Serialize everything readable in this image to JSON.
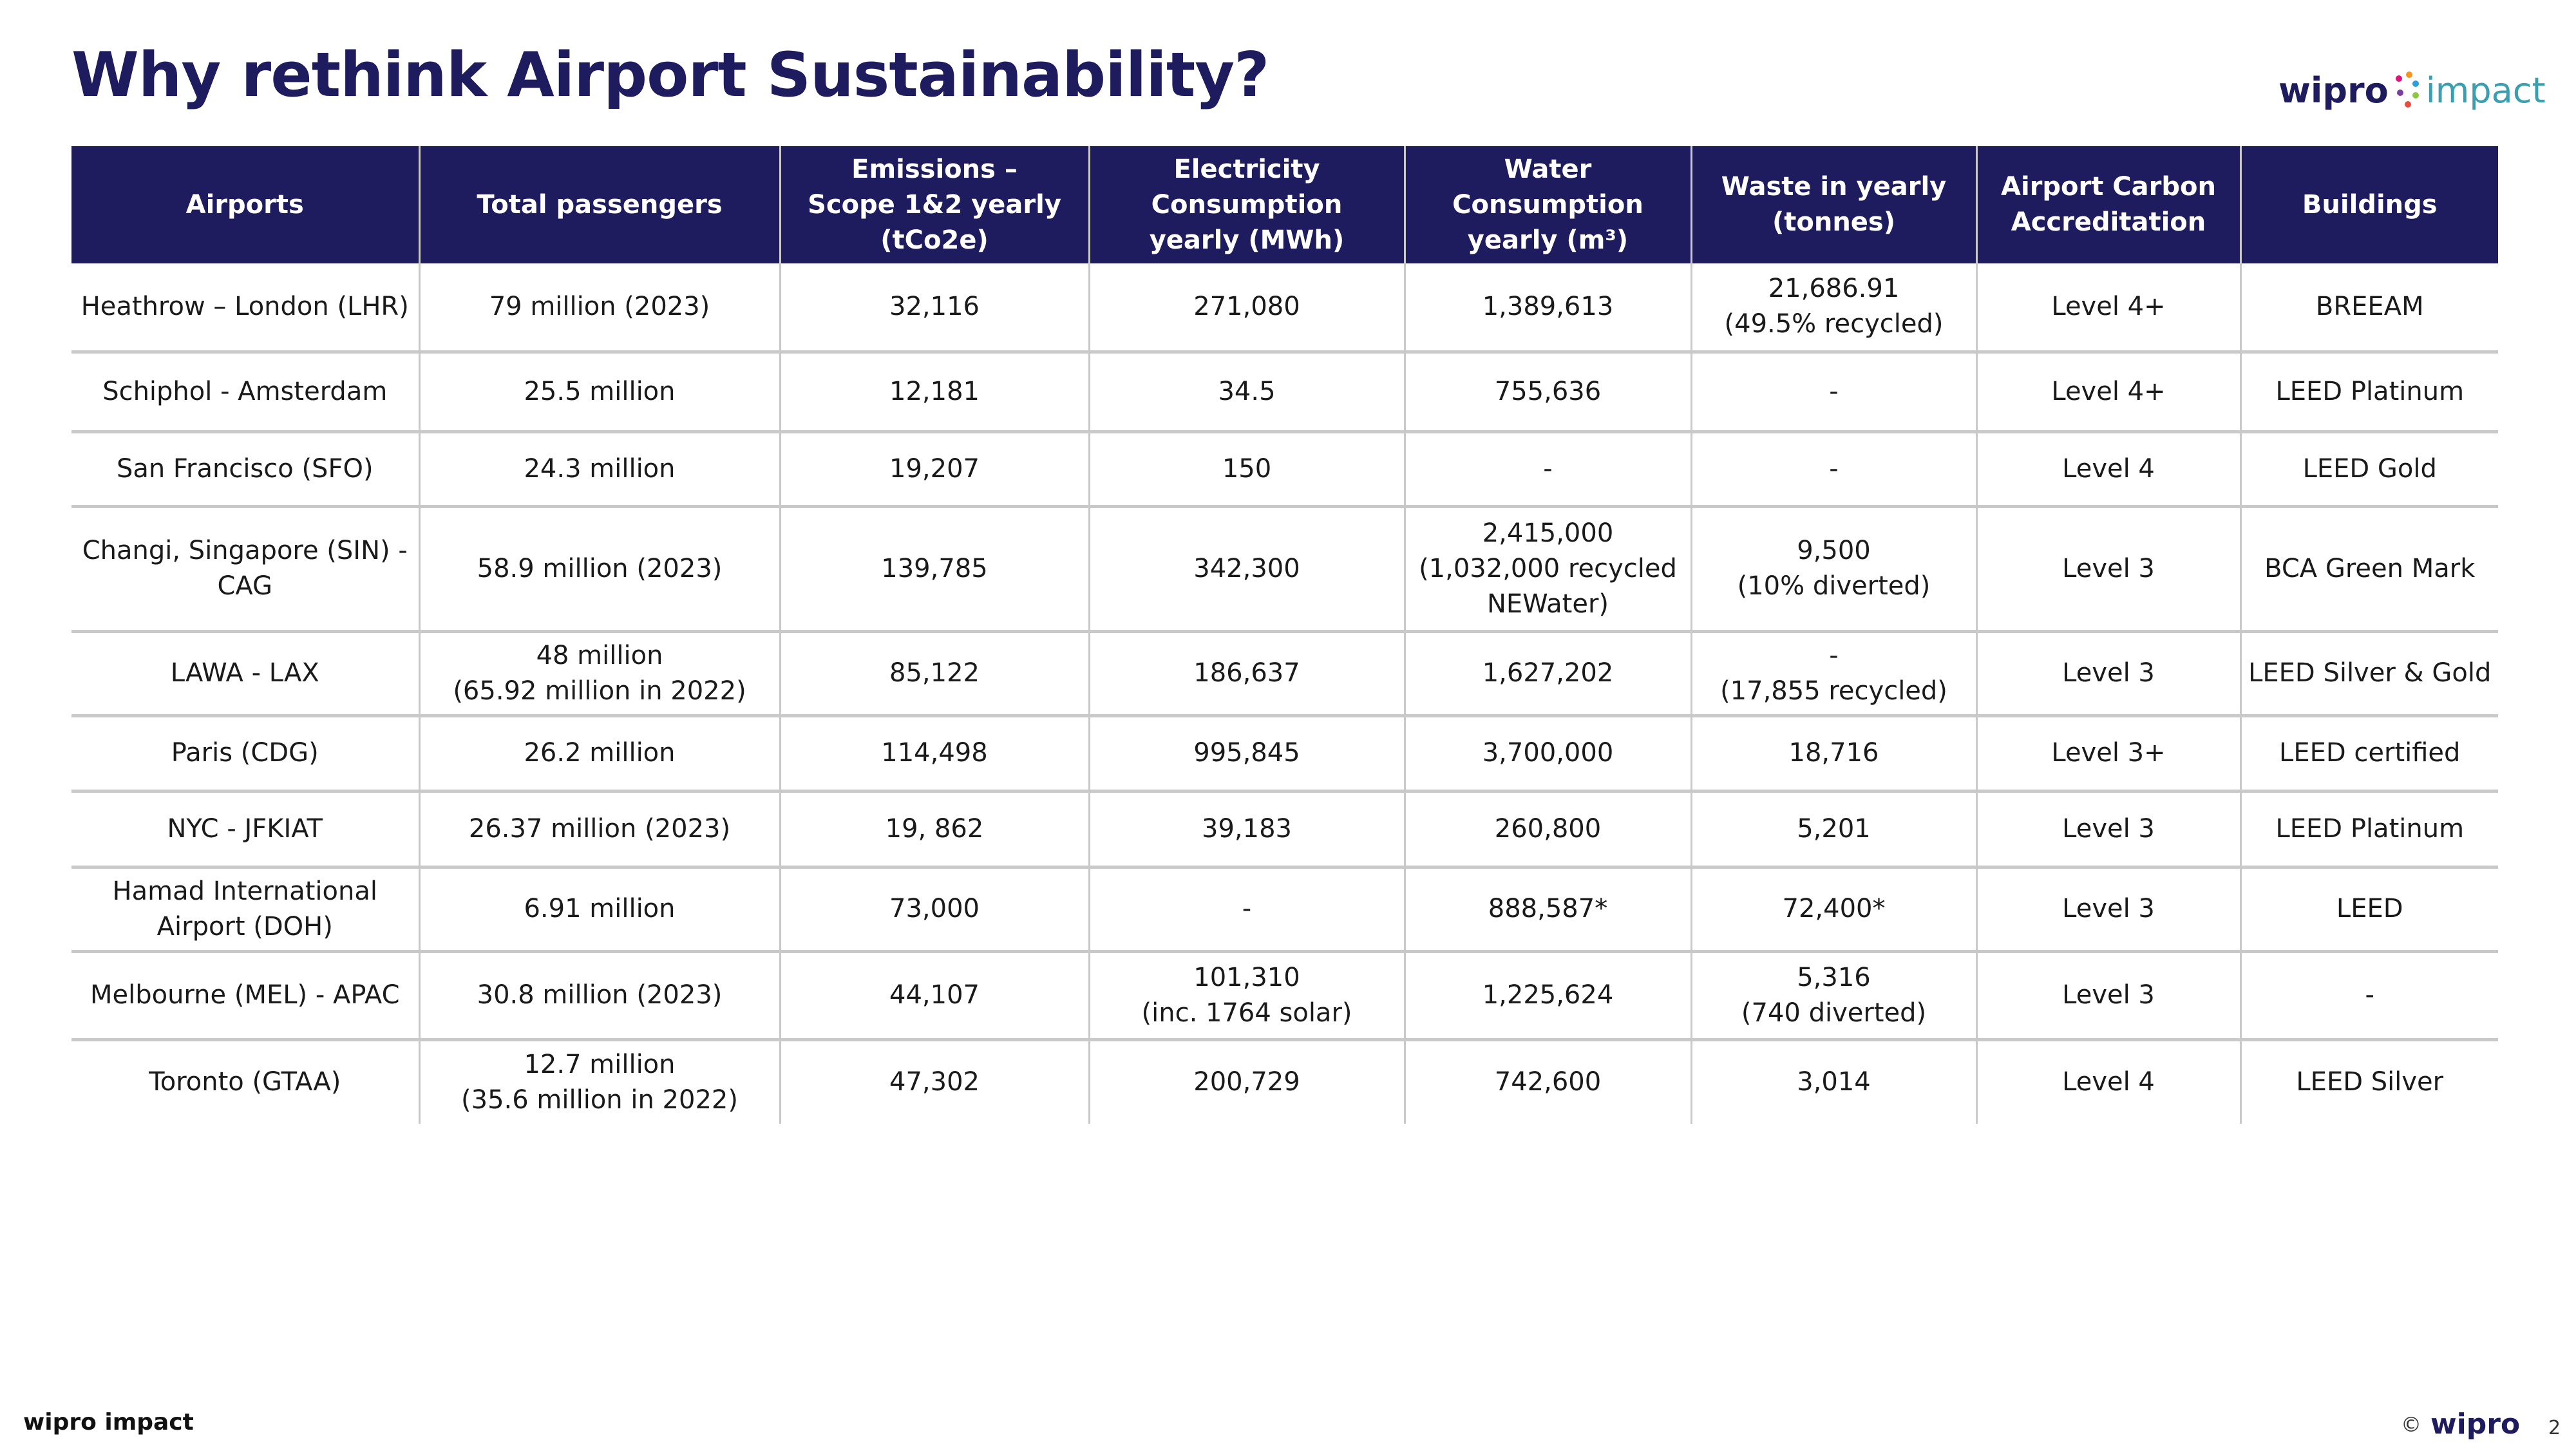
{
  "title": "Why rethink Airport Sustainability?",
  "logo": {
    "brand": "wipro",
    "suffix": "impact",
    "dot_colors": [
      "#e2127a",
      "#f7941d",
      "#2b9fd6",
      "#8dc63f",
      "#7b3fa0",
      "#e94e3c"
    ]
  },
  "table": {
    "headers": [
      [
        "Airports"
      ],
      [
        "Total passengers"
      ],
      [
        "Emissions –",
        "Scope 1&2 yearly",
        "(tCo2e)"
      ],
      [
        "Electricity Consumption",
        "yearly (MWh)"
      ],
      [
        "Water Consumption",
        "yearly (m³)"
      ],
      [
        "Waste in yearly",
        "(tonnes)"
      ],
      [
        "Airport Carbon",
        "Accreditation"
      ],
      [
        "Buildings"
      ]
    ],
    "rows": [
      [
        [
          "Heathrow – London (LHR)"
        ],
        [
          "79 million (2023)"
        ],
        [
          "32,116"
        ],
        [
          "271,080"
        ],
        [
          "1,389,613"
        ],
        [
          "21,686.91",
          "(49.5% recycled)"
        ],
        [
          "Level 4+"
        ],
        [
          "BREEAM"
        ]
      ],
      [
        [
          "Schiphol - Amsterdam"
        ],
        [
          "25.5 million"
        ],
        [
          "12,181"
        ],
        [
          "34.5"
        ],
        [
          "755,636"
        ],
        [
          "-"
        ],
        [
          "Level 4+"
        ],
        [
          "LEED Platinum"
        ]
      ],
      [
        [
          "San Francisco (SFO)"
        ],
        [
          "24.3 million"
        ],
        [
          "19,207"
        ],
        [
          "150"
        ],
        [
          "-"
        ],
        [
          "-"
        ],
        [
          "Level 4"
        ],
        [
          "LEED Gold"
        ]
      ],
      [
        [
          "Changi, Singapore (SIN) -",
          "CAG"
        ],
        [
          "58.9 million (2023)"
        ],
        [
          "139,785"
        ],
        [
          "342,300"
        ],
        [
          "2,415,000",
          "(1,032,000 recycled",
          "NEWater)"
        ],
        [
          "9,500",
          "(10% diverted)"
        ],
        [
          "Level 3"
        ],
        [
          "BCA Green Mark"
        ]
      ],
      [
        [
          "LAWA - LAX"
        ],
        [
          "48 million",
          "(65.92 million in 2022)"
        ],
        [
          "85,122"
        ],
        [
          "186,637"
        ],
        [
          "1,627,202"
        ],
        [
          "-",
          "(17,855 recycled)"
        ],
        [
          "Level 3"
        ],
        [
          "LEED Silver & Gold"
        ]
      ],
      [
        [
          "Paris (CDG)"
        ],
        [
          "26.2 million"
        ],
        [
          "114,498"
        ],
        [
          "995,845"
        ],
        [
          "3,700,000"
        ],
        [
          "18,716"
        ],
        [
          "Level 3+"
        ],
        [
          "LEED certified"
        ]
      ],
      [
        [
          "NYC - JFKIAT"
        ],
        [
          "26.37 million (2023)"
        ],
        [
          "19, 862"
        ],
        [
          "39,183"
        ],
        [
          "260,800"
        ],
        [
          "5,201"
        ],
        [
          "Level 3"
        ],
        [
          "LEED Platinum"
        ]
      ],
      [
        [
          "Hamad International",
          "Airport (DOH)"
        ],
        [
          "6.91 million"
        ],
        [
          "73,000"
        ],
        [
          "-"
        ],
        [
          "888,587*"
        ],
        [
          "72,400*"
        ],
        [
          "Level 3"
        ],
        [
          "LEED"
        ]
      ],
      [
        [
          "Melbourne (MEL) - APAC"
        ],
        [
          "30.8 million (2023)"
        ],
        [
          "44,107"
        ],
        [
          "101,310",
          "(inc. 1764 solar)"
        ],
        [
          "1,225,624"
        ],
        [
          "5,316",
          "(740 diverted)"
        ],
        [
          "Level 3"
        ],
        [
          "-"
        ]
      ],
      [
        [
          "Toronto (GTAA)"
        ],
        [
          "12.7 million",
          "(35.6 million in 2022)"
        ],
        [
          "47,302"
        ],
        [
          "200,729"
        ],
        [
          "742,600"
        ],
        [
          "3,014"
        ],
        [
          "Level 4"
        ],
        [
          "LEED Silver"
        ]
      ]
    ]
  },
  "footer": {
    "left": "wipro impact",
    "copyright": "©",
    "brand": "wipro",
    "page": "2"
  },
  "colors": {
    "navy": "#1e1b5e",
    "teal": "#3a9fb0",
    "grid": "#c9c9c9"
  }
}
